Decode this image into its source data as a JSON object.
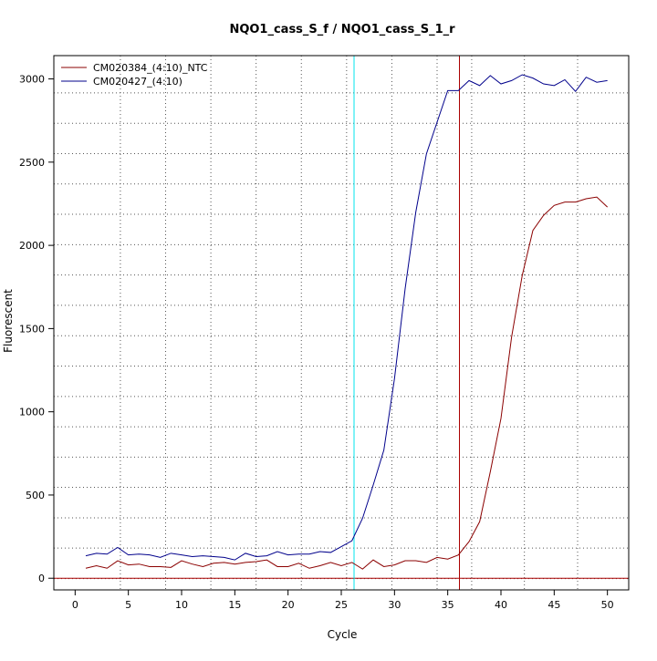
{
  "chart_data": {
    "type": "line",
    "title": "NQO1_cass_S_f / NQO1_cass_S_1_r",
    "xlabel": "Cycle",
    "ylabel": "Fluorescent",
    "xlim": [
      -2,
      52
    ],
    "ylim": [
      -70,
      3140
    ],
    "x_ticks": [
      0,
      5,
      10,
      15,
      20,
      25,
      30,
      35,
      40,
      45,
      50
    ],
    "y_ticks": [
      0,
      500,
      1000,
      1500,
      2000,
      2500,
      3000
    ],
    "grid": true,
    "grid_style": "dotted",
    "grid_x": [
      4.25,
      8.5,
      12.75,
      17.0,
      21.25,
      25.5,
      29.75,
      34.0,
      37.25,
      42.2,
      47.2
    ],
    "grid_y": [
      -2,
      181,
      363,
      546,
      728,
      910,
      1092,
      1275,
      1457,
      1640,
      1822,
      2004,
      2187,
      2369,
      2551,
      2733,
      2916
    ],
    "legend_position": "top-left",
    "threshold": {
      "y": 0,
      "color": "#aa0000"
    },
    "vertical_markers": [
      {
        "x": 26.2,
        "color": "#00e5ee"
      },
      {
        "x": 36.1,
        "color": "#aa0000"
      }
    ],
    "x": [
      1,
      2,
      3,
      4,
      5,
      6,
      7,
      8,
      9,
      10,
      11,
      12,
      13,
      14,
      15,
      16,
      17,
      18,
      19,
      20,
      21,
      22,
      23,
      24,
      25,
      26,
      27,
      28,
      29,
      30,
      31,
      32,
      33,
      34,
      35,
      36,
      37,
      38,
      39,
      40,
      41,
      42,
      43,
      44,
      45,
      46,
      47,
      48,
      49,
      50
    ],
    "series": [
      {
        "name": "CM020384_(4:10)_NTC",
        "color": "#8b0000",
        "values": [
          60,
          75,
          60,
          105,
          80,
          85,
          70,
          70,
          65,
          105,
          85,
          70,
          90,
          95,
          85,
          95,
          100,
          110,
          70,
          70,
          90,
          60,
          75,
          95,
          75,
          95,
          55,
          110,
          70,
          80,
          105,
          105,
          95,
          125,
          115,
          140,
          220,
          340,
          640,
          960,
          1450,
          1820,
          2090,
          2180,
          2240,
          2260,
          2260,
          2280,
          2290,
          2230
        ]
      },
      {
        "name": "CM020427_(4:10)",
        "color": "#00008b",
        "values": [
          135,
          150,
          145,
          185,
          140,
          145,
          140,
          125,
          150,
          140,
          130,
          135,
          130,
          125,
          110,
          150,
          130,
          135,
          160,
          140,
          145,
          145,
          160,
          155,
          190,
          225,
          360,
          560,
          770,
          1200,
          1740,
          2200,
          2550,
          2740,
          2930,
          2930,
          2990,
          2960,
          3020,
          2970,
          2990,
          3025,
          3005,
          2970,
          2960,
          2995,
          2925,
          3010,
          2980,
          2990
        ]
      }
    ]
  }
}
